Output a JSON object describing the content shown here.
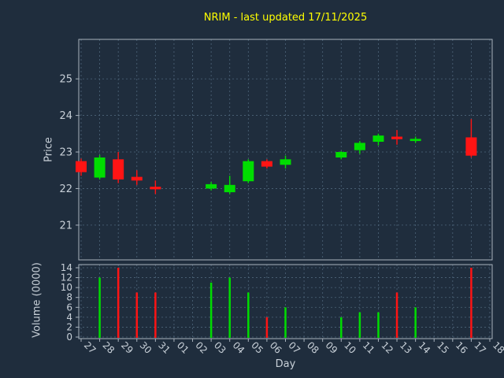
{
  "chart_data": {
    "type": "candlestick",
    "title": "NRIM - last updated 17/11/2025",
    "xlabel": "Day",
    "ylabel_price": "Price",
    "ylabel_volume": "Volume (0000)",
    "categories": [
      "27",
      "28",
      "29",
      "30",
      "31",
      "01",
      "02",
      "03",
      "04",
      "05",
      "06",
      "07",
      "08",
      "09",
      "10",
      "11",
      "12",
      "13",
      "14",
      "15",
      "16",
      "17",
      "18"
    ],
    "price_ticks": [
      21,
      22,
      23,
      24,
      25
    ],
    "volume_ticks": [
      0,
      2,
      4,
      6,
      8,
      10,
      12,
      14
    ],
    "price_ylim": [
      20.05,
      26.08
    ],
    "volume_ylim": [
      0,
      14
    ],
    "grid": "on",
    "candles": [
      {
        "day": "27",
        "i": 0,
        "open": 22.75,
        "high": 22.82,
        "low": 22.35,
        "close": 22.45,
        "volume": 0
      },
      {
        "day": "28",
        "i": 1,
        "open": 22.3,
        "high": 22.92,
        "low": 22.25,
        "close": 22.85,
        "volume": 12
      },
      {
        "day": "29",
        "i": 2,
        "open": 22.8,
        "high": 23.0,
        "low": 22.15,
        "close": 22.25,
        "volume": 14
      },
      {
        "day": "30",
        "i": 3,
        "open": 22.32,
        "high": 22.5,
        "low": 22.1,
        "close": 22.22,
        "volume": 9
      },
      {
        "day": "31",
        "i": 4,
        "open": 22.05,
        "high": 22.22,
        "low": 21.85,
        "close": 21.98,
        "volume": 9
      },
      {
        "day": "03",
        "i": 7,
        "open": 22.0,
        "high": 22.18,
        "low": 21.95,
        "close": 22.12,
        "volume": 11
      },
      {
        "day": "04",
        "i": 8,
        "open": 21.9,
        "high": 22.35,
        "low": 21.85,
        "close": 22.1,
        "volume": 12
      },
      {
        "day": "05",
        "i": 9,
        "open": 22.2,
        "high": 22.8,
        "low": 22.15,
        "close": 22.75,
        "volume": 9
      },
      {
        "day": "06",
        "i": 10,
        "open": 22.75,
        "high": 22.8,
        "low": 22.55,
        "close": 22.6,
        "volume": 4
      },
      {
        "day": "07",
        "i": 11,
        "open": 22.65,
        "high": 22.9,
        "low": 22.55,
        "close": 22.8,
        "volume": 6
      },
      {
        "day": "10",
        "i": 14,
        "open": 22.85,
        "high": 23.02,
        "low": 22.8,
        "close": 23.0,
        "volume": 4
      },
      {
        "day": "11",
        "i": 15,
        "open": 23.05,
        "high": 23.3,
        "low": 22.95,
        "close": 23.25,
        "volume": 5
      },
      {
        "day": "12",
        "i": 16,
        "open": 23.28,
        "high": 23.5,
        "low": 23.18,
        "close": 23.45,
        "volume": 5
      },
      {
        "day": "13",
        "i": 17,
        "open": 23.42,
        "high": 23.6,
        "low": 23.2,
        "close": 23.35,
        "volume": 9
      },
      {
        "day": "14",
        "i": 18,
        "open": 23.3,
        "high": 23.42,
        "low": 23.25,
        "close": 23.36,
        "volume": 6
      },
      {
        "day": "17",
        "i": 21,
        "open": 23.4,
        "high": 23.9,
        "low": 22.85,
        "close": 22.9,
        "volume": 14
      }
    ]
  },
  "colors": {
    "background": "#1f2d3d",
    "grid": "#4e657a",
    "spine": "#a9b3bd",
    "text": "#c8d0d8",
    "title": "#ffff00",
    "up": "#00dd00",
    "down": "#ff1414"
  }
}
